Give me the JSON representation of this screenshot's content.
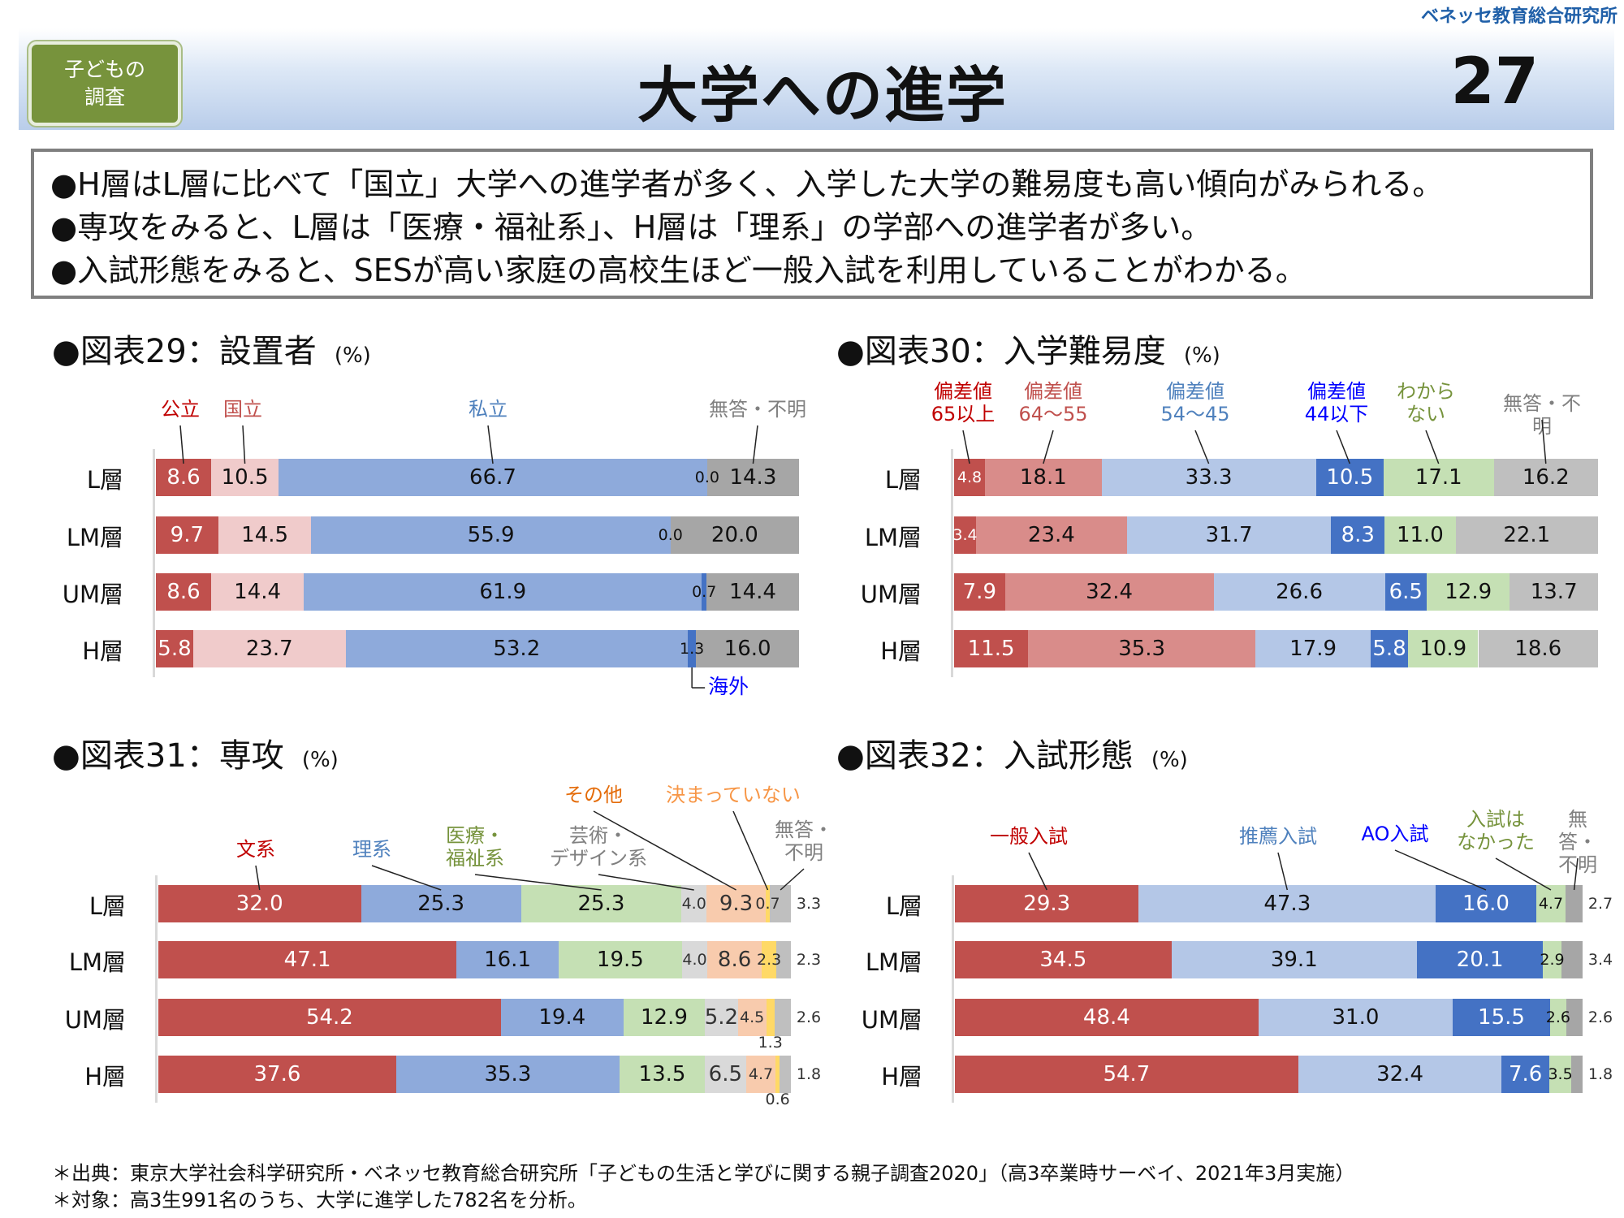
{
  "header": {
    "brand": "ベネッセ教育総合研究所",
    "badge": "子どもの\n調査",
    "title": "大学への進学",
    "page_number": "27"
  },
  "summary": [
    "●H層はL層に比べて「国立」大学への進学者が多く、入学した大学の難易度も高い傾向がみられる。",
    "●専攻をみると、L層は「医療・福祉系」、H層は「理系」の学部への進学者が多い。",
    "●入試形態をみると、SESが高い家庭の高校生ほど一般入試を利用していることがわかる。"
  ],
  "footnotes": [
    "＊出典：東京大学社会科学研究所・ベネッセ教育総合研究所「子どもの生活と学びに関する親子調査2020」（高3卒業時サーベイ、2021年3月実施）",
    "＊対象：高3生991名のうち、大学に進学した782名を分析。"
  ],
  "chart_data": [
    {
      "type": "bar",
      "stacked": "horizontal-100",
      "title": "●図表29：設置者",
      "unit": "(%)",
      "categories": [
        "L層",
        "LM層",
        "UM層",
        "H層"
      ],
      "series": [
        {
          "name": "公立",
          "color": "#c0504d",
          "label_color": "#ffffff",
          "legend_color": "#c00000",
          "values": [
            8.6,
            9.7,
            8.6,
            5.8
          ]
        },
        {
          "name": "国立",
          "color": "#f0cbcb",
          "label_color": "#111111",
          "legend_color": "#c0504d",
          "values": [
            10.5,
            14.5,
            14.4,
            23.7
          ]
        },
        {
          "name": "私立",
          "color": "#8eaadb",
          "label_color": "#111111",
          "legend_color": "#4f81bd",
          "values": [
            66.7,
            55.9,
            61.9,
            53.2
          ]
        },
        {
          "name": "海外",
          "color": "#4472c4",
          "label_color": "#111111",
          "legend_color": "#0000ff",
          "values": [
            0.0,
            0.0,
            0.7,
            1.3
          ]
        },
        {
          "name": "無答・不明",
          "color": "#a6a6a6",
          "label_color": "#111111",
          "legend_color": "#808080",
          "values": [
            14.3,
            20.0,
            14.4,
            16.0
          ]
        }
      ]
    },
    {
      "type": "bar",
      "stacked": "horizontal-100",
      "title": "●図表30：入学難易度",
      "unit": "(%)",
      "categories": [
        "L層",
        "LM層",
        "UM層",
        "H層"
      ],
      "series": [
        {
          "name": "偏差値\n65以上",
          "color": "#c0504d",
          "label_color": "#ffffff",
          "legend_color": "#c00000",
          "values": [
            4.8,
            3.4,
            7.9,
            11.5
          ]
        },
        {
          "name": "偏差値\n64～55",
          "color": "#d98c8a",
          "label_color": "#111111",
          "legend_color": "#c0504d",
          "values": [
            18.1,
            23.4,
            32.4,
            35.3
          ]
        },
        {
          "name": "偏差値\n54～45",
          "color": "#b4c7e7",
          "label_color": "#111111",
          "legend_color": "#4f81bd",
          "values": [
            33.3,
            31.7,
            26.6,
            17.9
          ]
        },
        {
          "name": "偏差値\n44以下",
          "color": "#4472c4",
          "label_color": "#ffffff",
          "legend_color": "#0000ff",
          "values": [
            10.5,
            8.3,
            6.5,
            5.8
          ]
        },
        {
          "name": "わから\nない",
          "color": "#c5e0b4",
          "label_color": "#111111",
          "legend_color": "#76933c",
          "values": [
            17.1,
            11.0,
            12.9,
            10.9
          ]
        },
        {
          "name": "無答・不明",
          "color": "#bfbfbf",
          "label_color": "#111111",
          "legend_color": "#808080",
          "values": [
            16.2,
            22.1,
            13.7,
            18.6
          ]
        }
      ]
    },
    {
      "type": "bar",
      "stacked": "horizontal-100",
      "title": "●図表31：専攻",
      "unit": "(%)",
      "categories": [
        "L層",
        "LM層",
        "UM層",
        "H層"
      ],
      "series": [
        {
          "name": "文系",
          "color": "#c0504d",
          "label_color": "#ffffff",
          "legend_color": "#c00000",
          "values": [
            32.0,
            47.1,
            54.2,
            37.6
          ]
        },
        {
          "name": "理系",
          "color": "#8eaadb",
          "label_color": "#111111",
          "legend_color": "#4f81bd",
          "values": [
            25.3,
            16.1,
            19.4,
            35.3
          ]
        },
        {
          "name": "医療・\n福祉系",
          "color": "#c5e0b4",
          "label_color": "#111111",
          "legend_color": "#76933c",
          "values": [
            25.3,
            19.5,
            12.9,
            13.5
          ]
        },
        {
          "name": "芸術・\nデザイン系",
          "color": "#d9d9d9",
          "label_color": "#333333",
          "legend_color": "#808080",
          "values": [
            4.0,
            4.0,
            5.2,
            6.5
          ]
        },
        {
          "name": "その他",
          "color": "#f8cbad",
          "label_color": "#333333",
          "legend_color": "#e46c0a",
          "values": [
            9.3,
            8.6,
            4.5,
            4.7
          ]
        },
        {
          "name": "決まっていない",
          "color": "#ffd966",
          "label_color": "#333333",
          "legend_color": "#f79646",
          "values": [
            0.7,
            2.3,
            1.3,
            0.6
          ]
        },
        {
          "name": "無答・\n不明",
          "color": "#bfbfbf",
          "label_color": "#333333",
          "legend_color": "#808080",
          "values": [
            3.3,
            2.3,
            2.6,
            1.8
          ]
        }
      ]
    },
    {
      "type": "bar",
      "stacked": "horizontal-100",
      "title": "●図表32：入試形態",
      "unit": "(%)",
      "categories": [
        "L層",
        "LM層",
        "UM層",
        "H層"
      ],
      "series": [
        {
          "name": "一般入試",
          "color": "#c0504d",
          "label_color": "#ffffff",
          "legend_color": "#c00000",
          "values": [
            29.3,
            34.5,
            48.4,
            54.7
          ]
        },
        {
          "name": "推薦入試",
          "color": "#b4c7e7",
          "label_color": "#111111",
          "legend_color": "#4f81bd",
          "values": [
            47.3,
            39.1,
            31.0,
            32.4
          ]
        },
        {
          "name": "AO入試",
          "color": "#4472c4",
          "label_color": "#ffffff",
          "legend_color": "#0000ff",
          "values": [
            16.0,
            20.1,
            15.5,
            7.6
          ]
        },
        {
          "name": "入試は\nなかった",
          "color": "#c5e0b4",
          "label_color": "#111111",
          "legend_color": "#76933c",
          "values": [
            4.7,
            2.9,
            2.6,
            3.5
          ]
        },
        {
          "name": "無答・\n不明",
          "color": "#a6a6a6",
          "label_color": "#333333",
          "legend_color": "#808080",
          "values": [
            2.7,
            3.4,
            2.6,
            1.8
          ]
        }
      ]
    }
  ]
}
